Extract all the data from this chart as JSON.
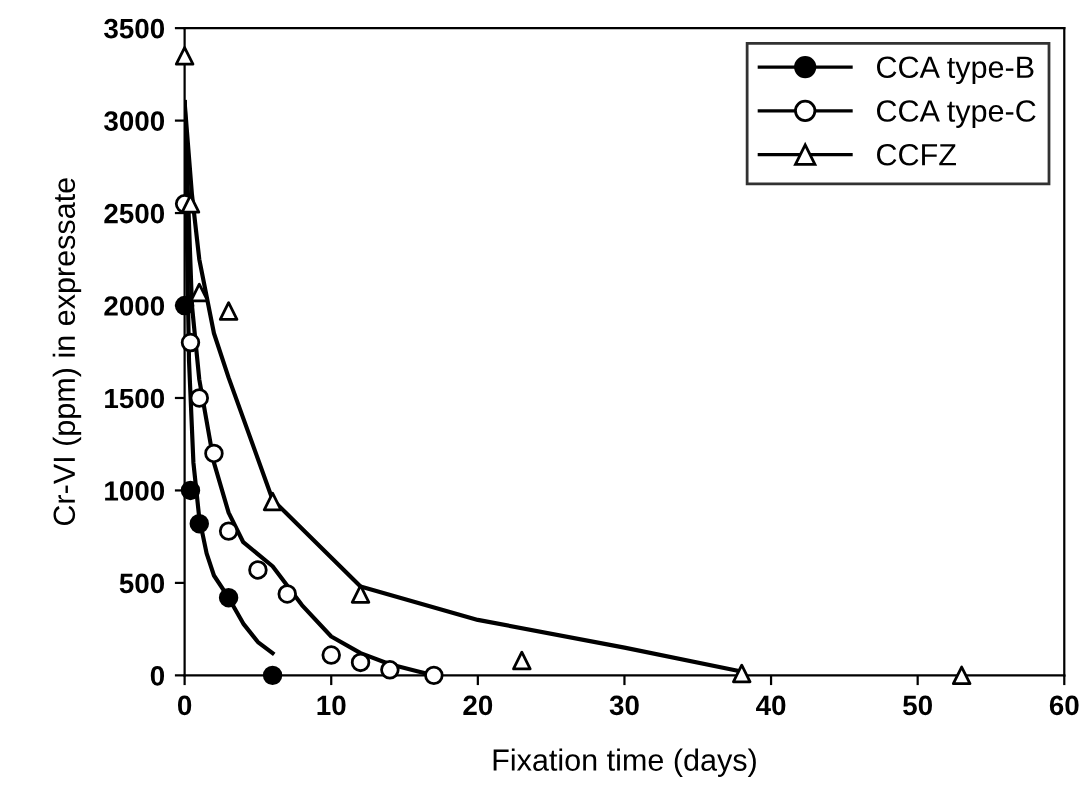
{
  "chart_data": {
    "type": "scatter",
    "xlabel": "Fixation time (days)",
    "ylabel": "Cr-VI (ppm) in expressate",
    "xlim": [
      0,
      60
    ],
    "ylim": [
      0,
      3500
    ],
    "xticks": [
      0,
      10,
      20,
      30,
      40,
      50,
      60
    ],
    "yticks": [
      0,
      500,
      1000,
      1500,
      2000,
      2500,
      3000,
      3500
    ],
    "grid": false,
    "legend": "top right",
    "series": [
      {
        "name": "CCA type-B",
        "marker": "circle",
        "color": "#000000",
        "x": [
          0,
          0.4,
          1,
          3,
          6
        ],
        "values": [
          2000,
          1000,
          820,
          420,
          0
        ]
      },
      {
        "name": "CCA type-C",
        "marker": "circle",
        "color": "#ffffff",
        "x": [
          0,
          0.4,
          1,
          2,
          3,
          5,
          7,
          10,
          12,
          14,
          17
        ],
        "values": [
          2550,
          1800,
          1500,
          1200,
          780,
          570,
          440,
          110,
          70,
          30,
          0
        ]
      },
      {
        "name": "CCFZ",
        "marker": "triangle",
        "color": "#ffffff",
        "x": [
          0,
          0.4,
          1,
          3,
          6,
          12,
          23,
          38,
          53
        ],
        "values": [
          3350,
          2550,
          2070,
          1970,
          940,
          440,
          80,
          10,
          0
        ]
      },
      {
        "type": "line",
        "color": "#000000",
        "x": [
          0,
          0.3,
          0.6,
          1,
          1.5,
          2,
          3,
          4,
          5,
          6
        ],
        "values": [
          3100,
          1700,
          1150,
          850,
          660,
          540,
          420,
          280,
          180,
          120
        ]
      },
      {
        "type": "line",
        "color": "#000000",
        "x": [
          0,
          0.5,
          1,
          2,
          3,
          4,
          6,
          8,
          10,
          12,
          14,
          16,
          17
        ],
        "values": [
          3100,
          2000,
          1600,
          1150,
          880,
          720,
          590,
          380,
          210,
          120,
          60,
          20,
          0
        ]
      },
      {
        "type": "line",
        "color": "#000000",
        "x": [
          0,
          0.5,
          1,
          2,
          3,
          6,
          12,
          20,
          30,
          38
        ],
        "values": [
          3100,
          2600,
          2250,
          1850,
          1610,
          950,
          480,
          300,
          150,
          20
        ]
      }
    ]
  }
}
